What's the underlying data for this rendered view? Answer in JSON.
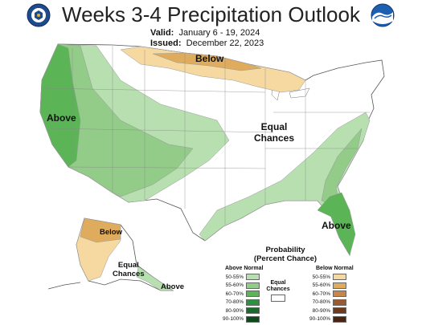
{
  "title": "Weeks 3-4 Precipitation Outlook",
  "valid_label": "Valid:",
  "valid_dates": "January 6 - 19, 2024",
  "issued_label": "Issued:",
  "issued_date": "December 22, 2023",
  "map_labels": {
    "below_north": "Below",
    "above_west": "Above",
    "equal_line1": "Equal",
    "equal_line2": "Chances",
    "above_southeast": "Above",
    "alaska_below": "Below",
    "alaska_equal1": "Equal",
    "alaska_equal2": "Chances",
    "alaska_above": "Above"
  },
  "legend": {
    "title_line1": "Probability",
    "title_line2": "(Percent Chance)",
    "above_header": "Above Normal",
    "below_header": "Below Normal",
    "equal_line1": "Equal",
    "equal_line2": "Chances",
    "above_rows": [
      {
        "label": "50-55%",
        "color": "#b7dfb0"
      },
      {
        "label": "55-60%",
        "color": "#92cc88"
      },
      {
        "label": "60-70%",
        "color": "#5bb556"
      },
      {
        "label": "70-80%",
        "color": "#2e9040"
      },
      {
        "label": "80-90%",
        "color": "#1c6b2e"
      },
      {
        "label": "90-100%",
        "color": "#0f4a1c"
      }
    ],
    "below_rows": [
      {
        "label": "50-55%",
        "color": "#f5d9a0"
      },
      {
        "label": "55-60%",
        "color": "#deac5c"
      },
      {
        "label": "60-70%",
        "color": "#c8864a"
      },
      {
        "label": "70-80%",
        "color": "#9a5a30"
      },
      {
        "label": "80-90%",
        "color": "#6e3a1e"
      },
      {
        "label": "90-100%",
        "color": "#4a2410"
      }
    ]
  },
  "colors": {
    "above_50": "#b7dfb0",
    "above_55": "#92cc88",
    "above_60": "#5bb556",
    "below_50": "#f5d9a0",
    "below_55": "#deac5c"
  },
  "icons": [
    "doc-seal-icon",
    "noaa-logo-icon"
  ]
}
